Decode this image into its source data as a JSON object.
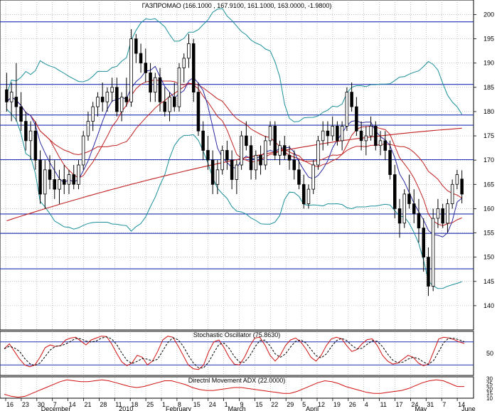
{
  "chart_data": {
    "type": "candlestick",
    "main": {
      "title": "ГАЗПРОМАО (166.1000 , 167.9100, 161.1000, 163.0000, -1.9800)",
      "ylim": [
        135,
        203
      ],
      "y_ticks": [
        140,
        145,
        150,
        155,
        160,
        165,
        170,
        175,
        180,
        185,
        190,
        195,
        200
      ],
      "horizontal_levels": [
        198.5,
        185.6,
        179.3,
        177.2,
        170.1,
        158.9,
        154.9,
        147.6
      ],
      "candles": [
        {
          "o": 184.5,
          "h": 188,
          "l": 180,
          "c": 182
        },
        {
          "o": 182,
          "h": 186,
          "l": 178,
          "c": 184
        },
        {
          "o": 183,
          "h": 190,
          "l": 178,
          "c": 181
        },
        {
          "o": 181,
          "h": 184,
          "l": 176,
          "c": 178
        },
        {
          "o": 178,
          "h": 180,
          "l": 172,
          "c": 174
        },
        {
          "o": 174,
          "h": 178,
          "l": 170,
          "c": 176
        },
        {
          "o": 176,
          "h": 178,
          "l": 168,
          "c": 170
        },
        {
          "o": 170,
          "h": 172,
          "l": 161,
          "c": 163
        },
        {
          "o": 163,
          "h": 170,
          "l": 160,
          "c": 168
        },
        {
          "o": 168,
          "h": 171,
          "l": 164,
          "c": 166
        },
        {
          "o": 166,
          "h": 170,
          "l": 162,
          "c": 164
        },
        {
          "o": 164,
          "h": 168,
          "l": 161,
          "c": 166
        },
        {
          "o": 166,
          "h": 169,
          "l": 163,
          "c": 165
        },
        {
          "o": 165,
          "h": 168,
          "l": 163,
          "c": 167
        },
        {
          "o": 167,
          "h": 169,
          "l": 164,
          "c": 165
        },
        {
          "o": 165,
          "h": 170,
          "l": 164,
          "c": 169
        },
        {
          "o": 169,
          "h": 176,
          "l": 168,
          "c": 175
        },
        {
          "o": 175,
          "h": 180,
          "l": 174,
          "c": 178
        },
        {
          "o": 178,
          "h": 182,
          "l": 176,
          "c": 181
        },
        {
          "o": 181,
          "h": 184,
          "l": 179,
          "c": 183
        },
        {
          "o": 183,
          "h": 186,
          "l": 180,
          "c": 182
        },
        {
          "o": 182,
          "h": 185,
          "l": 180,
          "c": 184
        },
        {
          "o": 184,
          "h": 187,
          "l": 182,
          "c": 185
        },
        {
          "o": 185,
          "h": 187,
          "l": 179,
          "c": 180
        },
        {
          "o": 180,
          "h": 184,
          "l": 178,
          "c": 183
        },
        {
          "o": 183,
          "h": 187,
          "l": 181,
          "c": 182
        },
        {
          "o": 182,
          "h": 197,
          "l": 181,
          "c": 195
        },
        {
          "o": 195,
          "h": 196,
          "l": 190,
          "c": 192
        },
        {
          "o": 192,
          "h": 194,
          "l": 188,
          "c": 190
        },
        {
          "o": 190,
          "h": 193,
          "l": 186,
          "c": 188
        },
        {
          "o": 188,
          "h": 190,
          "l": 182,
          "c": 184
        },
        {
          "o": 184,
          "h": 188,
          "l": 182,
          "c": 187
        },
        {
          "o": 187,
          "h": 189,
          "l": 180,
          "c": 182
        },
        {
          "o": 182,
          "h": 185,
          "l": 179,
          "c": 180
        },
        {
          "o": 180,
          "h": 184,
          "l": 178,
          "c": 183
        },
        {
          "o": 183,
          "h": 186,
          "l": 180,
          "c": 181
        },
        {
          "o": 181,
          "h": 190,
          "l": 180,
          "c": 189
        },
        {
          "o": 189,
          "h": 192,
          "l": 186,
          "c": 191
        },
        {
          "o": 191,
          "h": 196,
          "l": 189,
          "c": 194
        },
        {
          "o": 194,
          "h": 195,
          "l": 182,
          "c": 184
        },
        {
          "o": 184,
          "h": 186,
          "l": 175,
          "c": 176
        },
        {
          "o": 176,
          "h": 178,
          "l": 170,
          "c": 172
        },
        {
          "o": 172,
          "h": 175,
          "l": 168,
          "c": 170
        },
        {
          "o": 170,
          "h": 172,
          "l": 163,
          "c": 165
        },
        {
          "o": 165,
          "h": 170,
          "l": 163,
          "c": 168
        },
        {
          "o": 168,
          "h": 173,
          "l": 167,
          "c": 172
        },
        {
          "o": 172,
          "h": 174,
          "l": 168,
          "c": 170
        },
        {
          "o": 170,
          "h": 172,
          "l": 164,
          "c": 166
        },
        {
          "o": 166,
          "h": 170,
          "l": 163,
          "c": 169
        },
        {
          "o": 169,
          "h": 176,
          "l": 168,
          "c": 175
        },
        {
          "o": 175,
          "h": 178,
          "l": 172,
          "c": 173
        },
        {
          "o": 173,
          "h": 175,
          "l": 166,
          "c": 168
        },
        {
          "o": 168,
          "h": 172,
          "l": 166,
          "c": 171
        },
        {
          "o": 171,
          "h": 173,
          "l": 167,
          "c": 169
        },
        {
          "o": 169,
          "h": 175,
          "l": 168,
          "c": 174
        },
        {
          "o": 174,
          "h": 178,
          "l": 173,
          "c": 177
        },
        {
          "o": 177,
          "h": 178,
          "l": 170,
          "c": 171
        },
        {
          "o": 171,
          "h": 174,
          "l": 169,
          "c": 173
        },
        {
          "o": 173,
          "h": 175,
          "l": 170,
          "c": 171
        },
        {
          "o": 171,
          "h": 173,
          "l": 168,
          "c": 170
        },
        {
          "o": 170,
          "h": 172,
          "l": 166,
          "c": 168
        },
        {
          "o": 168,
          "h": 170,
          "l": 164,
          "c": 165
        },
        {
          "o": 165,
          "h": 167,
          "l": 160,
          "c": 161
        },
        {
          "o": 161,
          "h": 165,
          "l": 160,
          "c": 164
        },
        {
          "o": 164,
          "h": 170,
          "l": 163,
          "c": 169
        },
        {
          "o": 169,
          "h": 175,
          "l": 168,
          "c": 174
        },
        {
          "o": 174,
          "h": 178,
          "l": 172,
          "c": 176
        },
        {
          "o": 176,
          "h": 178,
          "l": 173,
          "c": 175
        },
        {
          "o": 175,
          "h": 179,
          "l": 174,
          "c": 177
        },
        {
          "o": 177,
          "h": 178,
          "l": 173,
          "c": 174
        },
        {
          "o": 174,
          "h": 178,
          "l": 172,
          "c": 177
        },
        {
          "o": 177,
          "h": 185,
          "l": 176,
          "c": 184
        },
        {
          "o": 184,
          "h": 186,
          "l": 180,
          "c": 181
        },
        {
          "o": 181,
          "h": 183,
          "l": 175,
          "c": 176
        },
        {
          "o": 176,
          "h": 178,
          "l": 172,
          "c": 174
        },
        {
          "o": 174,
          "h": 177,
          "l": 171,
          "c": 175
        },
        {
          "o": 175,
          "h": 179,
          "l": 174,
          "c": 177
        },
        {
          "o": 177,
          "h": 178,
          "l": 172,
          "c": 173
        },
        {
          "o": 173,
          "h": 176,
          "l": 171,
          "c": 174
        },
        {
          "o": 174,
          "h": 176,
          "l": 170,
          "c": 172
        },
        {
          "o": 172,
          "h": 174,
          "l": 166,
          "c": 167
        },
        {
          "o": 167,
          "h": 169,
          "l": 158,
          "c": 160
        },
        {
          "o": 160,
          "h": 162,
          "l": 154,
          "c": 157
        },
        {
          "o": 157,
          "h": 164,
          "l": 156,
          "c": 163
        },
        {
          "o": 163,
          "h": 167,
          "l": 160,
          "c": 161
        },
        {
          "o": 161,
          "h": 164,
          "l": 157,
          "c": 159
        },
        {
          "o": 159,
          "h": 162,
          "l": 153,
          "c": 156
        },
        {
          "o": 156,
          "h": 158,
          "l": 147,
          "c": 150
        },
        {
          "o": 150,
          "h": 152,
          "l": 142,
          "c": 144
        },
        {
          "o": 144,
          "h": 160,
          "l": 143,
          "c": 158
        },
        {
          "o": 158,
          "h": 162,
          "l": 156,
          "c": 160
        },
        {
          "o": 160,
          "h": 161,
          "l": 156,
          "c": 157
        },
        {
          "o": 157,
          "h": 162,
          "l": 155,
          "c": 161
        },
        {
          "o": 161,
          "h": 166,
          "l": 160,
          "c": 165
        },
        {
          "o": 165,
          "h": 168,
          "l": 164,
          "c": 167
        },
        {
          "o": 166.1,
          "h": 167.91,
          "l": 161.1,
          "c": 163
        }
      ]
    },
    "stochastic": {
      "title": "Stochastic Oscillator (75.8630)",
      "y_ticks": [
        50
      ],
      "levels": [
        80,
        20
      ],
      "k": [
        62,
        75,
        55,
        35,
        20,
        15,
        20,
        40,
        65,
        72,
        68,
        70,
        85,
        90,
        92,
        82,
        72,
        85,
        90,
        95,
        94,
        75,
        50,
        28,
        18,
        25,
        45,
        40,
        20,
        30,
        55,
        85,
        95,
        92,
        70,
        45,
        20,
        10,
        8,
        20,
        55,
        80,
        85,
        65,
        40,
        22,
        20,
        40,
        68,
        90,
        92,
        72,
        45,
        30,
        45,
        70,
        85,
        90,
        80,
        62,
        40,
        30,
        45,
        70,
        88,
        92,
        88,
        70,
        55,
        60,
        75,
        86,
        88,
        70,
        45,
        30,
        22,
        25,
        35,
        45,
        40,
        25,
        18,
        22,
        55,
        88,
        92,
        90,
        86,
        80,
        75.86
      ],
      "d_label": "dashed signal"
    },
    "adx": {
      "title": "Directnl Movement ADX (22.0000)",
      "ylim": [
        10,
        32
      ],
      "y_ticks": [
        10,
        15,
        20,
        25,
        30
      ],
      "values": [
        14,
        12,
        11,
        12,
        15,
        18,
        21,
        24,
        27,
        29,
        28,
        27,
        27,
        28,
        29,
        28,
        26,
        24,
        22,
        21,
        22,
        24,
        26,
        28,
        28,
        26,
        24,
        21,
        19,
        18,
        18,
        19,
        20,
        21,
        21,
        20,
        19,
        18,
        17,
        16,
        15,
        15,
        17,
        20,
        23,
        26,
        28,
        27,
        25,
        22,
        20,
        18,
        16,
        15,
        15,
        16,
        17,
        18,
        20,
        23,
        26,
        28,
        29,
        28,
        25,
        22,
        22
      ]
    },
    "x_tick_labels": [
      "16",
      "23",
      "30",
      "7",
      "14",
      "21",
      "28",
      "11",
      "18",
      "25",
      "1",
      "8",
      "15",
      "24",
      "1",
      "9",
      "15",
      "22",
      "29",
      "5",
      "12",
      "19",
      "26",
      "4",
      "11",
      "17",
      "24",
      "31",
      "7",
      "14"
    ],
    "x_month_labels": [
      "December",
      "2010",
      "February",
      "March",
      "April",
      "May",
      "June"
    ]
  }
}
